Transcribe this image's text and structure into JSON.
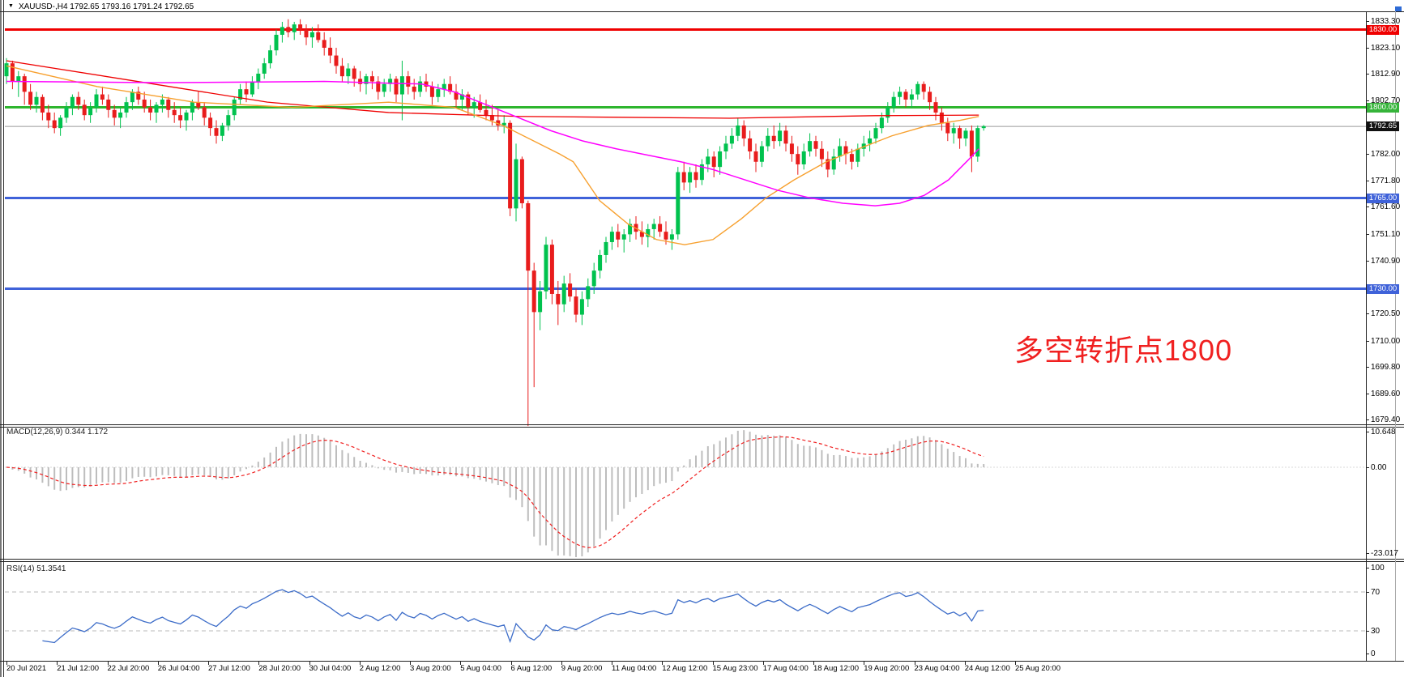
{
  "window": {
    "dropdown_glyph": "▼",
    "title": "XAUUSD-,H4  1792.65 1793.16 1791.24 1792.65"
  },
  "annotation": {
    "text": "多空转折点1800",
    "color": "#f02020"
  },
  "colors": {
    "bull": "#00c24e",
    "bear": "#e81c1c",
    "ma_red": "#ef0000",
    "ma_orange": "#f7a02e",
    "ma_magenta": "#ff00ff",
    "macd_hist": "#bdbdbd",
    "macd_signal": "#f02020",
    "rsi_line": "#3c6cc8",
    "rsi_levels": "#b8b8b8",
    "line_red": "#ef0000",
    "line_green": "#2eb52e",
    "line_blue": "#3f62d9",
    "line_current": "#9a9a9a"
  },
  "price_axis": {
    "ticks": [
      {
        "t": "1833.30",
        "p": 1833.3
      },
      {
        "t": "1823.10",
        "p": 1823.1
      },
      {
        "t": "1812.90",
        "p": 1812.9
      },
      {
        "t": "1802.70",
        "p": 1802.7
      },
      {
        "t": "1782.00",
        "p": 1782.0
      },
      {
        "t": "1771.80",
        "p": 1771.8
      },
      {
        "t": "1761.60",
        "p": 1761.6
      },
      {
        "t": "1751.10",
        "p": 1751.1
      },
      {
        "t": "1740.90",
        "p": 1740.9
      },
      {
        "t": "1720.50",
        "p": 1720.5
      },
      {
        "t": "1710.00",
        "p": 1710.0
      },
      {
        "t": "1699.80",
        "p": 1699.8
      },
      {
        "t": "1689.60",
        "p": 1689.6
      },
      {
        "t": "1679.40",
        "p": 1679.4
      }
    ],
    "badges": [
      {
        "t": "1830.00",
        "p": 1830.0,
        "bg": "#ef0000"
      },
      {
        "t": "1800.00",
        "p": 1800.0,
        "bg": "#36b43a"
      },
      {
        "t": "1792.65",
        "p": 1792.65,
        "bg": "#111111"
      },
      {
        "t": "1765.00",
        "p": 1765.0,
        "bg": "#3f62d9"
      },
      {
        "t": "1730.00",
        "p": 1730.0,
        "bg": "#3f62d9"
      }
    ]
  },
  "macd_panel": {
    "name": "MACD(12,26,9)",
    "values": "0.344 1.172",
    "axis": [
      "10.648",
      "0.00",
      "-23.017"
    ]
  },
  "rsi_panel": {
    "name": "RSI(14)",
    "value": "51.3541",
    "axis": [
      "100",
      "70",
      "30",
      "0"
    ],
    "levels": [
      70,
      30
    ]
  },
  "chart_data": {
    "type": "candlestick",
    "symbol": "XAUUSD",
    "timeframe": "H4",
    "ylim": [
      1679.4,
      1833.3
    ],
    "x_labels": [
      "20 Jul 2021",
      "21 Jul 12:00",
      "22 Jul 20:00",
      "26 Jul 04:00",
      "27 Jul 12:00",
      "28 Jul 20:00",
      "30 Jul 04:00",
      "2 Aug 12:00",
      "3 Aug 20:00",
      "5 Aug 04:00",
      "6 Aug 12:00",
      "9 Aug 20:00",
      "11 Aug 04:00",
      "12 Aug 12:00",
      "15 Aug 23:00",
      "17 Aug 04:00",
      "18 Aug 12:00",
      "19 Aug 20:00",
      "23 Aug 04:00",
      "24 Aug 12:00",
      "25 Aug 20:00"
    ],
    "hlines": [
      {
        "price": 1830.0,
        "color": "#ef0000",
        "w": 3
      },
      {
        "price": 1800.0,
        "color": "#2eb52e",
        "w": 3
      },
      {
        "price": 1792.65,
        "color": "#9a9a9a",
        "w": 1
      },
      {
        "price": 1765.0,
        "color": "#3f62d9",
        "w": 3
      },
      {
        "price": 1730.0,
        "color": "#3f62d9",
        "w": 3
      }
    ],
    "moving_averages": [
      {
        "name": "ma-red",
        "color": "#ef0000",
        "w": 1.3,
        "points": [
          [
            0,
            1818
          ],
          [
            0.134,
            1810
          ],
          [
            0.267,
            1802
          ],
          [
            0.391,
            1798
          ],
          [
            0.524,
            1796.5
          ],
          [
            0.74,
            1795.8
          ],
          [
            0.889,
            1796.8
          ],
          [
            0.995,
            1797
          ]
        ]
      },
      {
        "name": "ma-orange",
        "color": "#f7a02e",
        "w": 1.4,
        "points": [
          [
            0,
            1816
          ],
          [
            0.093,
            1808
          ],
          [
            0.192,
            1802
          ],
          [
            0.292,
            1800
          ],
          [
            0.391,
            1802
          ],
          [
            0.458,
            1800
          ],
          [
            0.508,
            1793
          ],
          [
            0.566,
            1782
          ],
          [
            0.58,
            1779
          ],
          [
            0.607,
            1764
          ],
          [
            0.636,
            1755
          ],
          [
            0.665,
            1749
          ],
          [
            0.694,
            1747
          ],
          [
            0.723,
            1749
          ],
          [
            0.752,
            1757
          ],
          [
            0.777,
            1765
          ],
          [
            0.806,
            1772
          ],
          [
            0.839,
            1779
          ],
          [
            0.872,
            1784
          ],
          [
            0.906,
            1789
          ],
          [
            0.943,
            1793
          ],
          [
            0.976,
            1795
          ],
          [
            0.995,
            1796.5
          ]
        ]
      },
      {
        "name": "ma-magenta",
        "color": "#ff00ff",
        "w": 1.5,
        "points": [
          [
            0,
            1810
          ],
          [
            0.159,
            1809.5
          ],
          [
            0.325,
            1810
          ],
          [
            0.425,
            1809
          ],
          [
            0.458,
            1806
          ],
          [
            0.491,
            1801
          ],
          [
            0.524,
            1796
          ],
          [
            0.557,
            1791
          ],
          [
            0.59,
            1787
          ],
          [
            0.624,
            1784
          ],
          [
            0.657,
            1781.5
          ],
          [
            0.69,
            1779
          ],
          [
            0.723,
            1776
          ],
          [
            0.756,
            1772
          ],
          [
            0.789,
            1768
          ],
          [
            0.823,
            1765
          ],
          [
            0.856,
            1763
          ],
          [
            0.889,
            1762
          ],
          [
            0.914,
            1763
          ],
          [
            0.939,
            1766
          ],
          [
            0.964,
            1772
          ],
          [
            0.985,
            1780
          ],
          [
            0.995,
            1784
          ]
        ]
      }
    ],
    "bars": [
      [
        1812,
        1819,
        1809,
        1817
      ],
      [
        1817,
        1818,
        1807,
        1810
      ],
      [
        1810,
        1814,
        1804,
        1812
      ],
      [
        1812,
        1813,
        1801,
        1806
      ],
      [
        1806,
        1809,
        1799,
        1801
      ],
      [
        1801,
        1806,
        1798,
        1804
      ],
      [
        1804,
        1805,
        1795,
        1798
      ],
      [
        1798,
        1801,
        1792,
        1795
      ],
      [
        1795,
        1798,
        1790,
        1792
      ],
      [
        1792,
        1797,
        1789,
        1796
      ],
      [
        1796,
        1802,
        1794,
        1800
      ],
      [
        1800,
        1805,
        1797,
        1804
      ],
      [
        1804,
        1806,
        1799,
        1801
      ],
      [
        1801,
        1803,
        1795,
        1797
      ],
      [
        1797,
        1802,
        1794,
        1800
      ],
      [
        1800,
        1807,
        1798,
        1805
      ],
      [
        1805,
        1808,
        1801,
        1803
      ],
      [
        1803,
        1805,
        1796,
        1799
      ],
      [
        1799,
        1801,
        1793,
        1796
      ],
      [
        1796,
        1800,
        1792,
        1798
      ],
      [
        1798,
        1804,
        1796,
        1802
      ],
      [
        1802,
        1807,
        1799,
        1806
      ],
      [
        1806,
        1808,
        1801,
        1803
      ],
      [
        1803,
        1806,
        1798,
        1800
      ],
      [
        1800,
        1803,
        1795,
        1798
      ],
      [
        1798,
        1802,
        1794,
        1801
      ],
      [
        1801,
        1805,
        1798,
        1803
      ],
      [
        1803,
        1804,
        1796,
        1799
      ],
      [
        1799,
        1802,
        1794,
        1797
      ],
      [
        1797,
        1800,
        1792,
        1795
      ],
      [
        1795,
        1799,
        1791,
        1798
      ],
      [
        1798,
        1803,
        1795,
        1802
      ],
      [
        1802,
        1806,
        1799,
        1800
      ],
      [
        1800,
        1802,
        1793,
        1796
      ],
      [
        1796,
        1798,
        1789,
        1792
      ],
      [
        1792,
        1795,
        1786,
        1789
      ],
      [
        1789,
        1794,
        1787,
        1793
      ],
      [
        1793,
        1799,
        1791,
        1797
      ],
      [
        1797,
        1804,
        1795,
        1803
      ],
      [
        1803,
        1809,
        1801,
        1807
      ],
      [
        1807,
        1810,
        1802,
        1805
      ],
      [
        1805,
        1812,
        1804,
        1810
      ],
      [
        1810,
        1815,
        1807,
        1813
      ],
      [
        1813,
        1819,
        1811,
        1817
      ],
      [
        1817,
        1824,
        1815,
        1822
      ],
      [
        1822,
        1830,
        1820,
        1828
      ],
      [
        1828,
        1833,
        1825,
        1831
      ],
      [
        1831,
        1834,
        1827,
        1829
      ],
      [
        1829,
        1833,
        1826,
        1832
      ],
      [
        1832,
        1834,
        1828,
        1830
      ],
      [
        1830,
        1832,
        1824,
        1827
      ],
      [
        1827,
        1831,
        1823,
        1829
      ],
      [
        1829,
        1832,
        1825,
        1826
      ],
      [
        1826,
        1829,
        1820,
        1823
      ],
      [
        1823,
        1827,
        1817,
        1820
      ],
      [
        1820,
        1823,
        1813,
        1816
      ],
      [
        1816,
        1819,
        1810,
        1812
      ],
      [
        1812,
        1817,
        1809,
        1815
      ],
      [
        1815,
        1816,
        1808,
        1811
      ],
      [
        1811,
        1814,
        1806,
        1809
      ],
      [
        1809,
        1813,
        1805,
        1812
      ],
      [
        1812,
        1814,
        1807,
        1810
      ],
      [
        1810,
        1812,
        1803,
        1806
      ],
      [
        1806,
        1811,
        1804,
        1809
      ],
      [
        1809,
        1813,
        1806,
        1811
      ],
      [
        1811,
        1812,
        1802,
        1805
      ],
      [
        1805,
        1818,
        1795,
        1812
      ],
      [
        1812,
        1814,
        1805,
        1808
      ],
      [
        1808,
        1811,
        1803,
        1806
      ],
      [
        1806,
        1812,
        1804,
        1810
      ],
      [
        1810,
        1813,
        1806,
        1808
      ],
      [
        1808,
        1810,
        1801,
        1804
      ],
      [
        1804,
        1809,
        1802,
        1807
      ],
      [
        1807,
        1811,
        1804,
        1809
      ],
      [
        1809,
        1812,
        1805,
        1806
      ],
      [
        1806,
        1809,
        1800,
        1803
      ],
      [
        1803,
        1807,
        1799,
        1805
      ],
      [
        1805,
        1806,
        1797,
        1800
      ],
      [
        1800,
        1804,
        1796,
        1802
      ],
      [
        1802,
        1805,
        1798,
        1799
      ],
      [
        1799,
        1803,
        1795,
        1797
      ],
      [
        1797,
        1801,
        1793,
        1795
      ],
      [
        1795,
        1799,
        1791,
        1793
      ],
      [
        1793,
        1797,
        1790,
        1794
      ],
      [
        1794,
        1795,
        1758,
        1761
      ],
      [
        1761,
        1786,
        1756,
        1780
      ],
      [
        1780,
        1781,
        1761,
        1763
      ],
      [
        1763,
        1764,
        1677,
        1737
      ],
      [
        1737,
        1740,
        1692,
        1721
      ],
      [
        1721,
        1733,
        1714,
        1729
      ],
      [
        1729,
        1750,
        1726,
        1747
      ],
      [
        1747,
        1749,
        1724,
        1728
      ],
      [
        1728,
        1733,
        1716,
        1724
      ],
      [
        1724,
        1735,
        1721,
        1732
      ],
      [
        1732,
        1736,
        1725,
        1727
      ],
      [
        1727,
        1730,
        1717,
        1720
      ],
      [
        1720,
        1729,
        1716,
        1726
      ],
      [
        1726,
        1734,
        1723,
        1731
      ],
      [
        1731,
        1740,
        1728,
        1737
      ],
      [
        1737,
        1745,
        1734,
        1743
      ],
      [
        1743,
        1750,
        1740,
        1748
      ],
      [
        1748,
        1754,
        1745,
        1752
      ],
      [
        1752,
        1755,
        1746,
        1749
      ],
      [
        1749,
        1753,
        1744,
        1751
      ],
      [
        1751,
        1757,
        1748,
        1755
      ],
      [
        1755,
        1758,
        1749,
        1752
      ],
      [
        1752,
        1756,
        1747,
        1750
      ],
      [
        1750,
        1755,
        1746,
        1753
      ],
      [
        1753,
        1757,
        1749,
        1755
      ],
      [
        1755,
        1758,
        1750,
        1752
      ],
      [
        1752,
        1756,
        1747,
        1749
      ],
      [
        1749,
        1753,
        1745,
        1751
      ],
      [
        1751,
        1777,
        1749,
        1775
      ],
      [
        1775,
        1779,
        1768,
        1771
      ],
      [
        1771,
        1777,
        1767,
        1775
      ],
      [
        1775,
        1778,
        1769,
        1772
      ],
      [
        1772,
        1780,
        1770,
        1778
      ],
      [
        1778,
        1784,
        1775,
        1781
      ],
      [
        1781,
        1783,
        1773,
        1777
      ],
      [
        1777,
        1785,
        1774,
        1783
      ],
      [
        1783,
        1789,
        1780,
        1786
      ],
      [
        1786,
        1792,
        1784,
        1789
      ],
      [
        1789,
        1796,
        1787,
        1793
      ],
      [
        1793,
        1795,
        1785,
        1788
      ],
      [
        1788,
        1791,
        1780,
        1783
      ],
      [
        1783,
        1786,
        1775,
        1779
      ],
      [
        1779,
        1787,
        1777,
        1785
      ],
      [
        1785,
        1792,
        1783,
        1789
      ],
      [
        1789,
        1793,
        1784,
        1787
      ],
      [
        1787,
        1794,
        1785,
        1791
      ],
      [
        1791,
        1793,
        1783,
        1786
      ],
      [
        1786,
        1789,
        1779,
        1782
      ],
      [
        1782,
        1785,
        1774,
        1778
      ],
      [
        1778,
        1786,
        1776,
        1783
      ],
      [
        1783,
        1790,
        1781,
        1787
      ],
      [
        1787,
        1789,
        1781,
        1784
      ],
      [
        1784,
        1787,
        1777,
        1780
      ],
      [
        1780,
        1783,
        1773,
        1776
      ],
      [
        1776,
        1784,
        1774,
        1781
      ],
      [
        1781,
        1788,
        1779,
        1785
      ],
      [
        1785,
        1787,
        1778,
        1782
      ],
      [
        1782,
        1784,
        1776,
        1779
      ],
      [
        1779,
        1786,
        1777,
        1784
      ],
      [
        1784,
        1789,
        1781,
        1786
      ],
      [
        1786,
        1791,
        1783,
        1788
      ],
      [
        1788,
        1794,
        1786,
        1792
      ],
      [
        1792,
        1798,
        1790,
        1796
      ],
      [
        1796,
        1802,
        1794,
        1800
      ],
      [
        1800,
        1806,
        1798,
        1804
      ],
      [
        1804,
        1808,
        1801,
        1806
      ],
      [
        1806,
        1807,
        1800,
        1803
      ],
      [
        1803,
        1807,
        1800,
        1805
      ],
      [
        1805,
        1810,
        1803,
        1809
      ],
      [
        1809,
        1810,
        1803,
        1806
      ],
      [
        1806,
        1808,
        1799,
        1802
      ],
      [
        1802,
        1804,
        1795,
        1798
      ],
      [
        1798,
        1800,
        1791,
        1794
      ],
      [
        1794,
        1796,
        1787,
        1790
      ],
      [
        1790,
        1794,
        1786,
        1792
      ],
      [
        1792,
        1793,
        1784,
        1788
      ],
      [
        1788,
        1792,
        1785,
        1791
      ],
      [
        1791,
        1793,
        1775,
        1781
      ],
      [
        1781,
        1793,
        1779,
        1792
      ],
      [
        1792,
        1793.2,
        1791,
        1792.7
      ]
    ]
  }
}
